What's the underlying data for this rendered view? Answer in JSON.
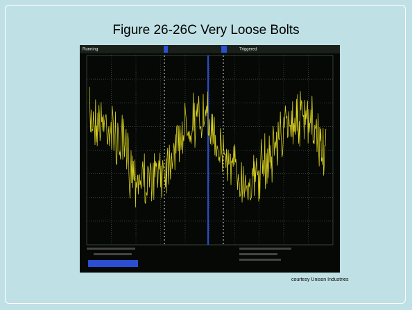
{
  "slide": {
    "title": "Figure 26-26C  Very Loose Bolts",
    "caption": "courtesy Unison Industries"
  },
  "scope": {
    "status": "Running",
    "trigger": "Triggered"
  }
}
